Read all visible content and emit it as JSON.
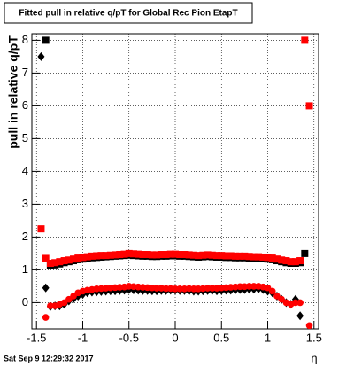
{
  "chart_data": {
    "type": "scatter",
    "title": "Fitted pull in relative q/pT for Global Rec Pion EtapT",
    "y_label": "pull in relative q/pT",
    "x_label": "η",
    "footer": "Sat Sep  9 12:29:32 2017",
    "xlim": [
      -1.55,
      1.55
    ],
    "ylim": [
      -0.8,
      8.2
    ],
    "xticks": [
      -1.5,
      -1,
      -0.5,
      0,
      0.5,
      1,
      1.5
    ],
    "yticks": [
      0,
      1,
      2,
      3,
      4,
      5,
      6,
      7,
      8
    ],
    "grid": true,
    "x": [
      -1.45,
      -1.4,
      -1.35,
      -1.3,
      -1.25,
      -1.2,
      -1.15,
      -1.1,
      -1.05,
      -1.0,
      -0.95,
      -0.9,
      -0.85,
      -0.8,
      -0.75,
      -0.7,
      -0.65,
      -0.6,
      -0.55,
      -0.5,
      -0.45,
      -0.4,
      -0.35,
      -0.3,
      -0.25,
      -0.2,
      -0.15,
      -0.1,
      -0.05,
      0,
      0.05,
      0.1,
      0.15,
      0.2,
      0.25,
      0.3,
      0.35,
      0.4,
      0.45,
      0.5,
      0.55,
      0.6,
      0.65,
      0.7,
      0.75,
      0.8,
      0.85,
      0.9,
      0.95,
      1.0,
      1.05,
      1.1,
      1.15,
      1.2,
      1.25,
      1.3,
      1.35,
      1.4,
      1.45
    ],
    "series": [
      {
        "color": "#000000",
        "marker": "square",
        "values": [
          null,
          8.0,
          1.12,
          1.15,
          1.18,
          1.22,
          1.25,
          1.28,
          1.31,
          1.33,
          1.35,
          1.37,
          1.38,
          1.39,
          1.4,
          1.41,
          1.42,
          1.43,
          1.44,
          1.45,
          1.44,
          1.43,
          1.42,
          1.42,
          1.41,
          1.41,
          1.42,
          1.42,
          1.43,
          1.43,
          1.42,
          1.42,
          1.41,
          1.4,
          1.39,
          1.4,
          1.41,
          1.4,
          1.39,
          1.39,
          1.38,
          1.38,
          1.37,
          1.37,
          1.37,
          1.36,
          1.35,
          1.35,
          1.34,
          1.33,
          1.31,
          1.28,
          1.25,
          1.22,
          1.2,
          1.2,
          1.22,
          1.5,
          null
        ]
      },
      {
        "color": "#000000",
        "marker": "diamond",
        "values": [
          7.5,
          0.45,
          -0.12,
          -0.1,
          -0.1,
          -0.05,
          0.05,
          0.12,
          0.2,
          0.25,
          0.3,
          0.32,
          0.33,
          0.34,
          0.35,
          0.36,
          0.36,
          0.37,
          0.38,
          0.4,
          0.39,
          0.38,
          0.37,
          0.37,
          0.36,
          0.36,
          0.37,
          0.37,
          0.38,
          0.38,
          0.37,
          0.37,
          0.36,
          0.35,
          0.35,
          0.36,
          0.37,
          0.37,
          0.36,
          0.37,
          0.38,
          0.38,
          0.39,
          0.4,
          0.4,
          0.41,
          0.41,
          0.42,
          0.4,
          0.35,
          0.3,
          0.2,
          0.1,
          0.0,
          -0.05,
          0.1,
          -0.4,
          null,
          null
        ]
      },
      {
        "color": "#ff0000",
        "marker": "square",
        "values": [
          2.25,
          1.35,
          1.2,
          1.22,
          1.25,
          1.28,
          1.3,
          1.33,
          1.36,
          1.38,
          1.4,
          1.42,
          1.43,
          1.44,
          1.44,
          1.45,
          1.46,
          1.47,
          1.48,
          1.5,
          1.49,
          1.48,
          1.47,
          1.47,
          1.46,
          1.46,
          1.47,
          1.47,
          1.48,
          1.48,
          1.47,
          1.47,
          1.46,
          1.45,
          1.44,
          1.45,
          1.46,
          1.45,
          1.44,
          1.44,
          1.43,
          1.43,
          1.42,
          1.42,
          1.42,
          1.41,
          1.4,
          1.4,
          1.39,
          1.38,
          1.36,
          1.33,
          1.3,
          1.28,
          1.25,
          1.25,
          1.28,
          8.0,
          6.0
        ]
      },
      {
        "color": "#ff0000",
        "marker": "circle",
        "values": [
          null,
          -0.45,
          -0.1,
          -0.1,
          -0.05,
          0.0,
          0.1,
          0.2,
          0.3,
          0.35,
          0.38,
          0.4,
          0.42,
          0.43,
          0.44,
          0.45,
          0.46,
          0.47,
          0.48,
          0.5,
          0.49,
          0.48,
          0.47,
          0.46,
          0.45,
          0.44,
          0.44,
          0.43,
          0.43,
          0.42,
          0.42,
          0.42,
          0.43,
          0.42,
          0.42,
          0.43,
          0.44,
          0.44,
          0.44,
          0.45,
          0.46,
          0.47,
          0.48,
          0.49,
          0.49,
          0.5,
          0.5,
          0.5,
          0.48,
          0.45,
          0.35,
          0.2,
          0.1,
          0.0,
          -0.05,
          0.0,
          0.0,
          null,
          -0.7
        ]
      }
    ]
  }
}
